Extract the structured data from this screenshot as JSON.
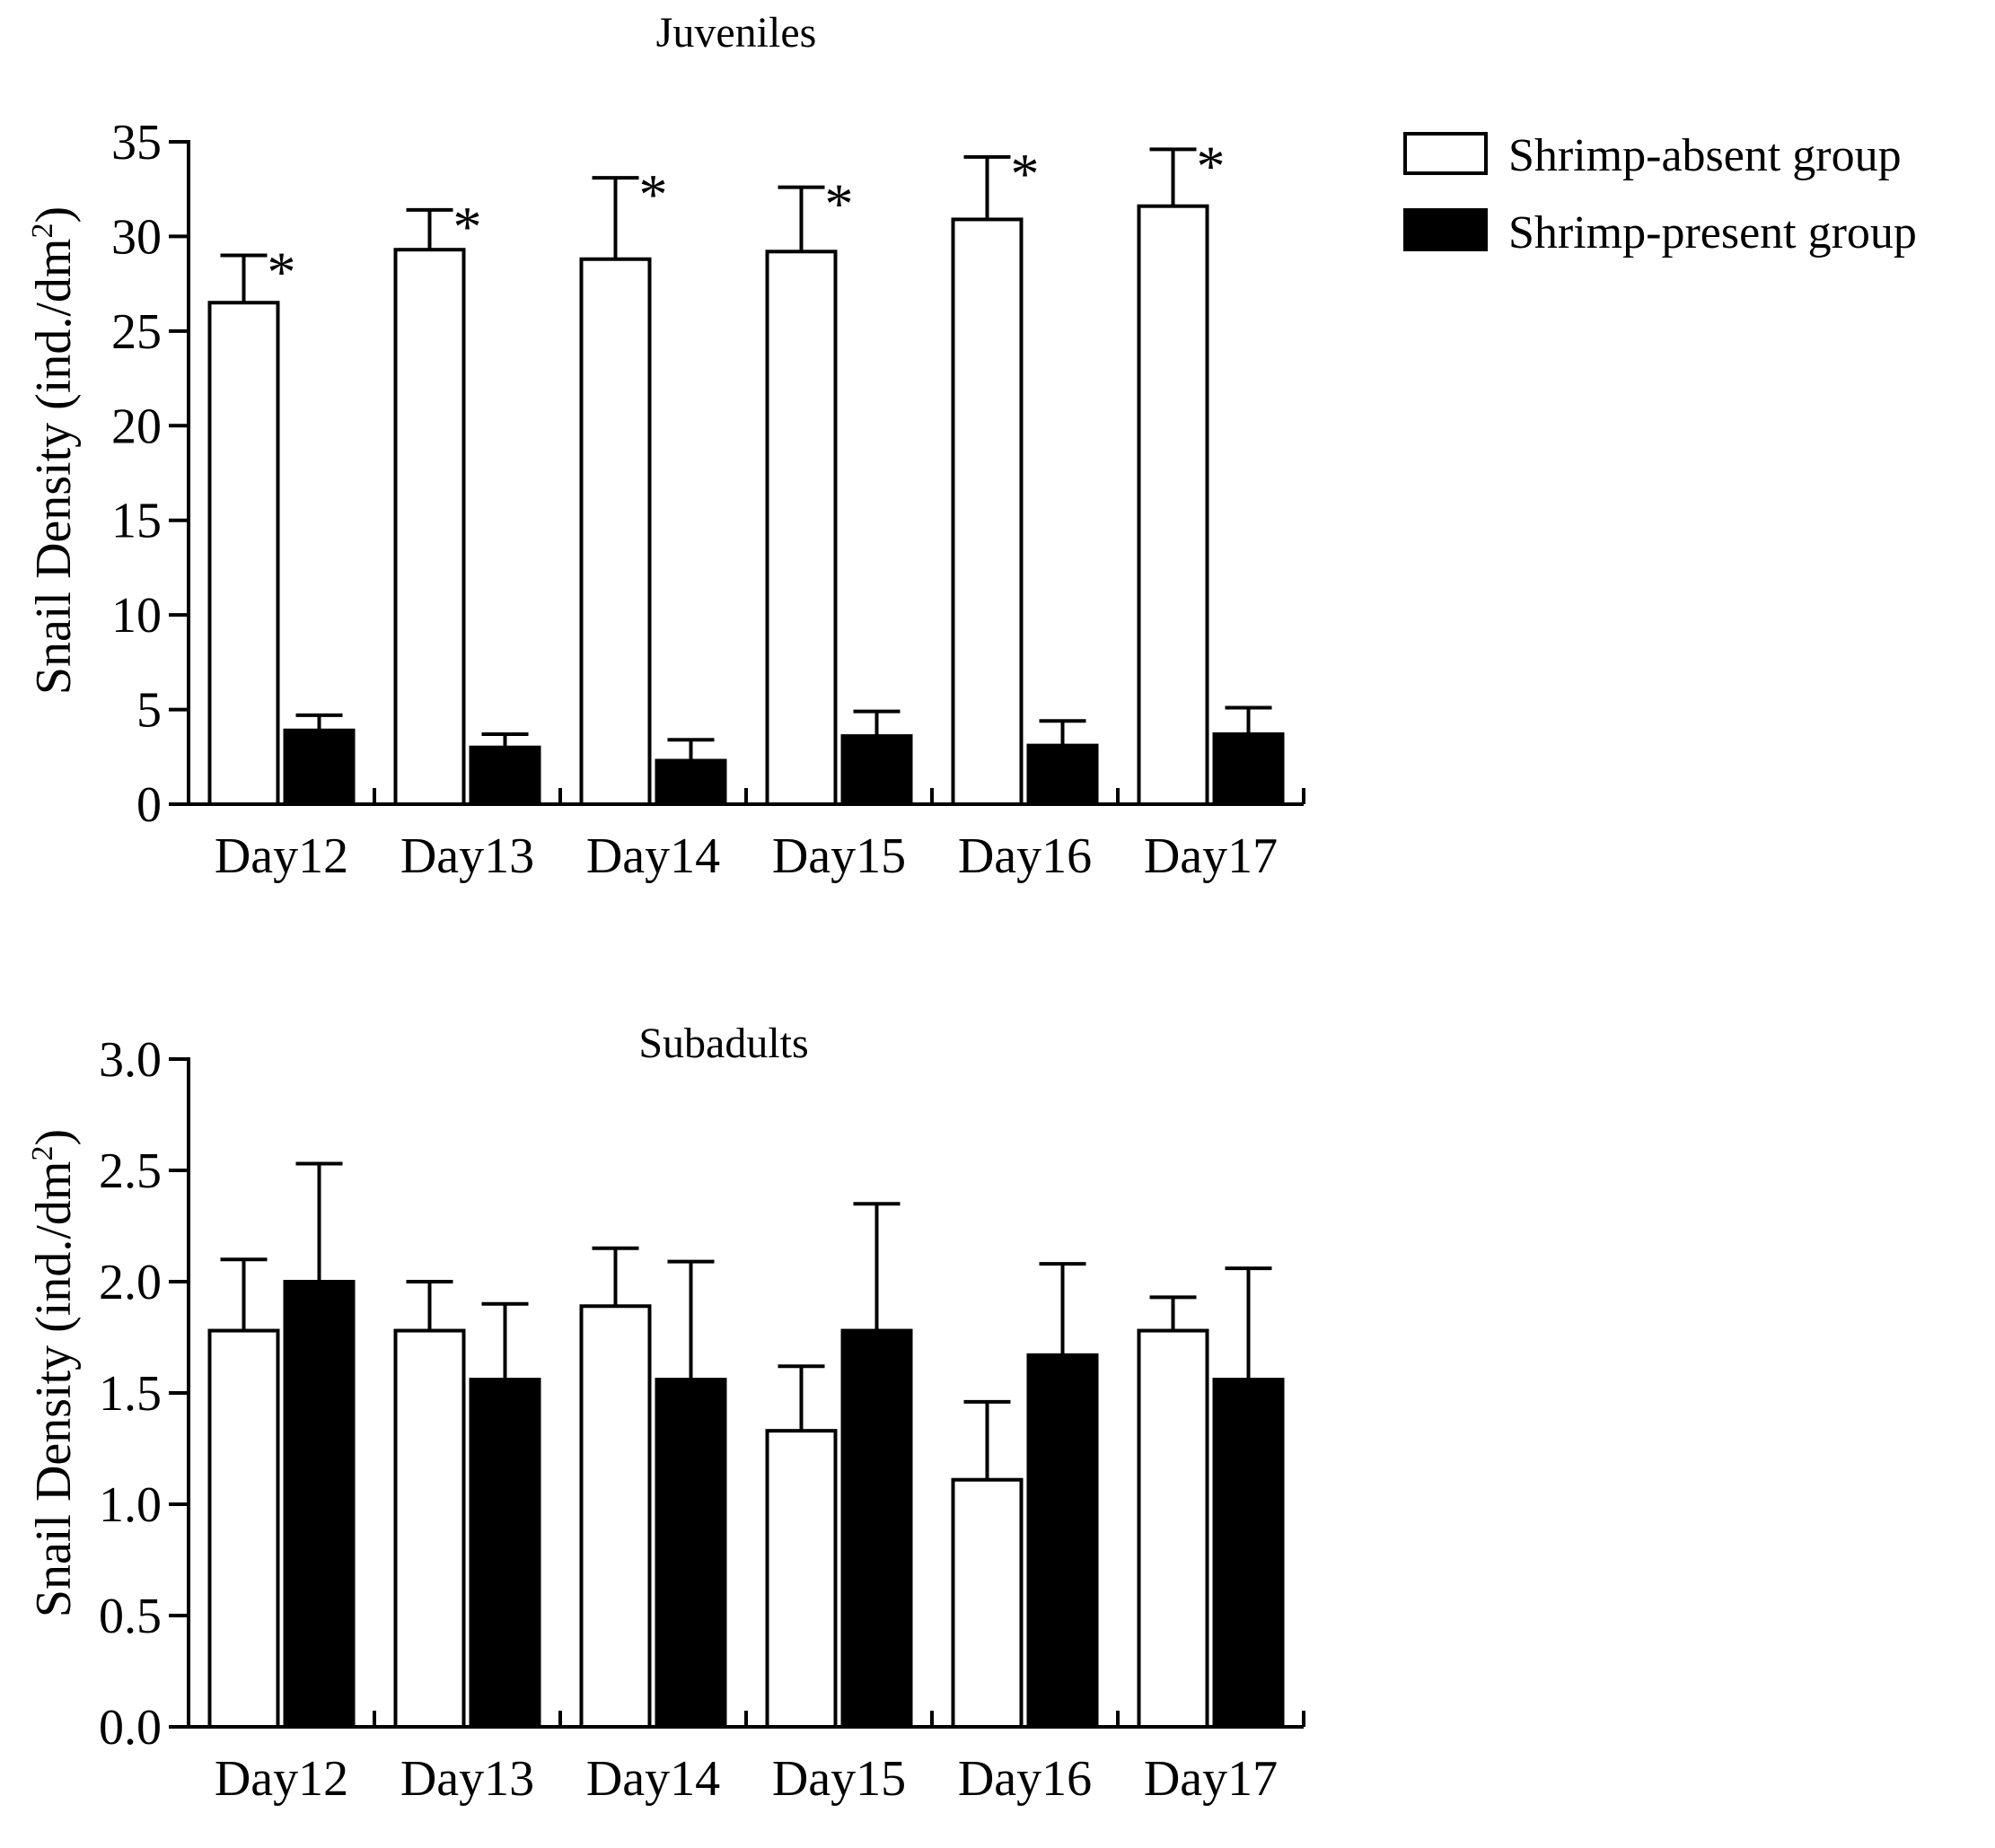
{
  "legend": {
    "absent": "Shrimp-absent group",
    "present": "Shrimp-present group"
  },
  "chart_data": [
    {
      "type": "bar",
      "title": "Juveniles",
      "ylabel": "Snail Density (ind./dm",
      "ylabel_sup": "2",
      "ylabel_end": ")",
      "ylim": [
        0,
        35
      ],
      "yticks": [
        "0",
        "5",
        "10",
        "15",
        "20",
        "25",
        "30",
        "35"
      ],
      "ytick_values": [
        0,
        5,
        10,
        15,
        20,
        25,
        30,
        35
      ],
      "categories": [
        "Day12",
        "Day13",
        "Day14",
        "Day15",
        "Day16",
        "Day17"
      ],
      "series": [
        {
          "name": "Shrimp-absent group",
          "fill": "#ffffff",
          "values": [
            26.5,
            29.3,
            28.8,
            29.2,
            30.9,
            31.6
          ],
          "errors": [
            2.5,
            2.1,
            4.3,
            3.4,
            3.3,
            3.0
          ]
        },
        {
          "name": "Shrimp-present group",
          "fill": "#000000",
          "values": [
            3.9,
            3.0,
            2.3,
            3.6,
            3.1,
            3.7
          ],
          "errors": [
            0.8,
            0.7,
            1.1,
            1.3,
            1.3,
            1.4
          ]
        }
      ],
      "annotations": [
        "*",
        "*",
        "*",
        "*",
        "*",
        "*"
      ]
    },
    {
      "type": "bar",
      "title": "Subadults",
      "ylabel": "Snail Density (ind./dm",
      "ylabel_sup": "2",
      "ylabel_end": ")",
      "ylim": [
        0,
        3.0
      ],
      "yticks": [
        "0.0",
        "0.5",
        "1.0",
        "1.5",
        "2.0",
        "2.5",
        "3.0"
      ],
      "ytick_values": [
        0,
        0.5,
        1.0,
        1.5,
        2.0,
        2.5,
        3.0
      ],
      "categories": [
        "Day12",
        "Day13",
        "Day14",
        "Day15",
        "Day16",
        "Day17"
      ],
      "series": [
        {
          "name": "Shrimp-absent group",
          "fill": "#ffffff",
          "values": [
            1.78,
            1.78,
            1.89,
            1.33,
            1.11,
            1.78
          ],
          "errors": [
            0.32,
            0.22,
            0.26,
            0.29,
            0.35,
            0.15
          ]
        },
        {
          "name": "Shrimp-present group",
          "fill": "#000000",
          "values": [
            2.0,
            1.56,
            1.56,
            1.78,
            1.67,
            1.56
          ],
          "errors": [
            0.53,
            0.34,
            0.53,
            0.57,
            0.41,
            0.5
          ]
        }
      ],
      "annotations": []
    }
  ]
}
